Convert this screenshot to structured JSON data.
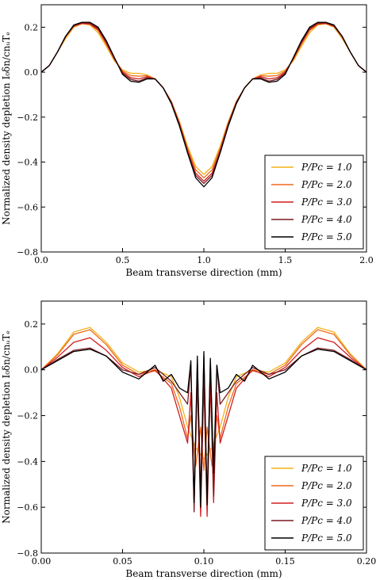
{
  "chart_data": [
    {
      "type": "line",
      "xlabel": "Beam transverse direction (mm)",
      "ylabel": "Normalized density depletion I₀δn/cnᵤTₑ",
      "xlim": [
        0.0,
        2.0
      ],
      "ylim": [
        -0.8,
        0.3
      ],
      "xticks": [
        "0.0",
        "0.5",
        "1.0",
        "1.5",
        "2.0"
      ],
      "yticks": [
        "0.2",
        "0.0",
        "−0.2",
        "−0.4",
        "−0.6",
        "−0.8"
      ],
      "legend_position": "lower-right",
      "series": [
        {
          "name": "P/Pc = 1.0",
          "color": "#f2b21a",
          "x": [
            0.0,
            0.05,
            0.1,
            0.15,
            0.2,
            0.25,
            0.3,
            0.35,
            0.4,
            0.45,
            0.5,
            0.55,
            0.6,
            0.65,
            0.7,
            0.75,
            0.8,
            0.85,
            0.9,
            0.95,
            1.0,
            1.05,
            1.1,
            1.15,
            1.2,
            1.25,
            1.3,
            1.35,
            1.4,
            1.45,
            1.5,
            1.55,
            1.6,
            1.65,
            1.7,
            1.75,
            1.8,
            1.85,
            1.9,
            1.95,
            2.0
          ],
          "values": [
            0.0,
            0.03,
            0.09,
            0.15,
            0.2,
            0.215,
            0.21,
            0.175,
            0.115,
            0.05,
            0.01,
            -0.005,
            -0.005,
            -0.012,
            -0.03,
            -0.07,
            -0.13,
            -0.22,
            -0.33,
            -0.42,
            -0.455,
            -0.42,
            -0.33,
            -0.22,
            -0.13,
            -0.07,
            -0.03,
            -0.012,
            -0.005,
            -0.005,
            0.01,
            0.05,
            0.115,
            0.175,
            0.21,
            0.215,
            0.2,
            0.15,
            0.09,
            0.03,
            0.0
          ]
        },
        {
          "name": "P/Pc = 2.0",
          "color": "#ee6a1e",
          "x": [
            0.0,
            0.05,
            0.1,
            0.15,
            0.2,
            0.25,
            0.3,
            0.35,
            0.4,
            0.45,
            0.5,
            0.55,
            0.6,
            0.65,
            0.7,
            0.75,
            0.8,
            0.85,
            0.9,
            0.95,
            1.0,
            1.05,
            1.1,
            1.15,
            1.2,
            1.25,
            1.3,
            1.35,
            1.4,
            1.45,
            1.5,
            1.55,
            1.6,
            1.65,
            1.7,
            1.75,
            1.8,
            1.85,
            1.9,
            1.95,
            2.0
          ],
          "values": [
            0.0,
            0.03,
            0.09,
            0.155,
            0.203,
            0.216,
            0.213,
            0.185,
            0.125,
            0.055,
            0.005,
            -0.015,
            -0.018,
            -0.015,
            -0.03,
            -0.07,
            -0.13,
            -0.225,
            -0.34,
            -0.435,
            -0.47,
            -0.435,
            -0.34,
            -0.225,
            -0.13,
            -0.07,
            -0.03,
            -0.015,
            -0.018,
            -0.015,
            0.005,
            0.055,
            0.125,
            0.185,
            0.213,
            0.216,
            0.203,
            0.155,
            0.09,
            0.03,
            0.0
          ]
        },
        {
          "name": "P/Pc = 3.0",
          "color": "#cf1f1f",
          "x": [
            0.0,
            0.05,
            0.1,
            0.15,
            0.2,
            0.25,
            0.3,
            0.35,
            0.4,
            0.45,
            0.5,
            0.55,
            0.6,
            0.65,
            0.7,
            0.75,
            0.8,
            0.85,
            0.9,
            0.95,
            1.0,
            1.05,
            1.1,
            1.15,
            1.2,
            1.25,
            1.3,
            1.35,
            1.4,
            1.45,
            1.5,
            1.55,
            1.6,
            1.65,
            1.7,
            1.75,
            1.8,
            1.85,
            1.9,
            1.95,
            2.0
          ],
          "values": [
            0.0,
            0.03,
            0.09,
            0.16,
            0.205,
            0.218,
            0.215,
            0.19,
            0.13,
            0.06,
            0.0,
            -0.025,
            -0.03,
            -0.02,
            -0.03,
            -0.07,
            -0.135,
            -0.23,
            -0.35,
            -0.45,
            -0.485,
            -0.45,
            -0.35,
            -0.23,
            -0.135,
            -0.07,
            -0.03,
            -0.02,
            -0.03,
            -0.025,
            0.0,
            0.06,
            0.13,
            0.19,
            0.215,
            0.218,
            0.205,
            0.16,
            0.09,
            0.03,
            0.0
          ]
        },
        {
          "name": "P/Pc = 4.0",
          "color": "#7a1a22",
          "x": [
            0.0,
            0.05,
            0.1,
            0.15,
            0.2,
            0.25,
            0.3,
            0.35,
            0.4,
            0.45,
            0.5,
            0.55,
            0.6,
            0.65,
            0.7,
            0.75,
            0.8,
            0.85,
            0.9,
            0.95,
            1.0,
            1.05,
            1.1,
            1.15,
            1.2,
            1.25,
            1.3,
            1.35,
            1.4,
            1.45,
            1.5,
            1.55,
            1.6,
            1.65,
            1.7,
            1.75,
            1.8,
            1.85,
            1.9,
            1.95,
            2.0
          ],
          "values": [
            0.0,
            0.03,
            0.09,
            0.16,
            0.207,
            0.22,
            0.218,
            0.195,
            0.135,
            0.062,
            -0.005,
            -0.032,
            -0.04,
            -0.025,
            -0.03,
            -0.07,
            -0.135,
            -0.235,
            -0.355,
            -0.46,
            -0.495,
            -0.46,
            -0.355,
            -0.235,
            -0.135,
            -0.07,
            -0.03,
            -0.025,
            -0.04,
            -0.032,
            -0.005,
            0.062,
            0.135,
            0.195,
            0.218,
            0.22,
            0.207,
            0.16,
            0.09,
            0.03,
            0.0
          ]
        },
        {
          "name": "P/Pc = 5.0",
          "color": "#000000",
          "x": [
            0.0,
            0.05,
            0.1,
            0.15,
            0.2,
            0.25,
            0.3,
            0.35,
            0.4,
            0.45,
            0.5,
            0.55,
            0.6,
            0.65,
            0.7,
            0.75,
            0.8,
            0.85,
            0.9,
            0.95,
            1.0,
            1.05,
            1.1,
            1.15,
            1.2,
            1.25,
            1.3,
            1.35,
            1.4,
            1.45,
            1.5,
            1.55,
            1.6,
            1.65,
            1.7,
            1.75,
            1.8,
            1.85,
            1.9,
            1.95,
            2.0
          ],
          "values": [
            0.0,
            0.03,
            0.09,
            0.16,
            0.21,
            0.222,
            0.222,
            0.2,
            0.14,
            0.065,
            -0.01,
            -0.04,
            -0.045,
            -0.03,
            -0.03,
            -0.07,
            -0.14,
            -0.24,
            -0.36,
            -0.47,
            -0.51,
            -0.47,
            -0.36,
            -0.24,
            -0.14,
            -0.07,
            -0.03,
            -0.03,
            -0.045,
            -0.04,
            -0.01,
            0.065,
            0.14,
            0.2,
            0.222,
            0.222,
            0.21,
            0.16,
            0.09,
            0.03,
            0.0
          ]
        }
      ]
    },
    {
      "type": "line",
      "xlabel": "Beam transverse direction (mm)",
      "ylabel": "Normalized density depletion I₀δn/cnᵤTₑ",
      "xlim": [
        0.0,
        0.2
      ],
      "ylim": [
        -0.8,
        0.3
      ],
      "xticks": [
        "0.00",
        "0.05",
        "0.10",
        "0.15",
        "0.20"
      ],
      "yticks": [
        "0.2",
        "0.0",
        "−0.2",
        "−0.4",
        "−0.6",
        "−0.8"
      ],
      "legend_position": "lower-right",
      "series": [
        {
          "name": "P/Pc = 1.0",
          "color": "#f2b21a",
          "x": [
            0.0,
            0.01,
            0.02,
            0.03,
            0.04,
            0.05,
            0.06,
            0.07,
            0.08,
            0.085,
            0.09,
            0.095,
            0.1,
            0.105,
            0.11,
            0.115,
            0.12,
            0.13,
            0.14,
            0.15,
            0.16,
            0.17,
            0.18,
            0.19,
            0.2
          ],
          "values": [
            0.0,
            0.07,
            0.165,
            0.185,
            0.12,
            0.03,
            -0.01,
            0.0,
            -0.03,
            -0.12,
            -0.25,
            -0.34,
            -0.39,
            -0.34,
            -0.25,
            -0.12,
            -0.03,
            0.0,
            -0.01,
            0.03,
            0.12,
            0.185,
            0.165,
            0.07,
            0.0
          ]
        },
        {
          "name": "P/Pc = 2.0",
          "color": "#ee6a1e",
          "x": [
            0.0,
            0.01,
            0.02,
            0.03,
            0.04,
            0.05,
            0.06,
            0.07,
            0.08,
            0.085,
            0.09,
            0.092,
            0.095,
            0.098,
            0.1,
            0.102,
            0.105,
            0.108,
            0.11,
            0.115,
            0.12,
            0.13,
            0.14,
            0.15,
            0.16,
            0.17,
            0.18,
            0.19,
            0.2
          ],
          "values": [
            0.0,
            0.065,
            0.155,
            0.175,
            0.11,
            0.02,
            -0.02,
            -0.005,
            -0.06,
            -0.16,
            -0.3,
            -0.2,
            -0.42,
            -0.25,
            -0.44,
            -0.25,
            -0.42,
            -0.2,
            -0.3,
            -0.16,
            -0.06,
            -0.005,
            -0.02,
            0.02,
            0.11,
            0.175,
            0.155,
            0.065,
            0.0
          ]
        },
        {
          "name": "P/Pc = 3.0",
          "color": "#cf1f1f",
          "x": [
            0.0,
            0.01,
            0.02,
            0.03,
            0.04,
            0.05,
            0.06,
            0.07,
            0.08,
            0.085,
            0.09,
            0.092,
            0.094,
            0.096,
            0.098,
            0.1,
            0.102,
            0.104,
            0.106,
            0.108,
            0.11,
            0.115,
            0.12,
            0.13,
            0.14,
            0.15,
            0.16,
            0.17,
            0.18,
            0.19,
            0.2
          ],
          "values": [
            0.0,
            0.055,
            0.12,
            0.14,
            0.085,
            0.01,
            -0.03,
            0.0,
            -0.08,
            -0.2,
            -0.32,
            -0.1,
            -0.58,
            -0.05,
            -0.64,
            -0.05,
            -0.64,
            -0.05,
            -0.58,
            -0.1,
            -0.32,
            -0.2,
            -0.08,
            0.0,
            -0.03,
            0.01,
            0.085,
            0.14,
            0.12,
            0.055,
            0.0
          ]
        },
        {
          "name": "P/Pc = 4.0",
          "color": "#7a1a22",
          "x": [
            0.0,
            0.01,
            0.02,
            0.03,
            0.04,
            0.05,
            0.06,
            0.07,
            0.08,
            0.085,
            0.09,
            0.092,
            0.094,
            0.096,
            0.098,
            0.1,
            0.102,
            0.104,
            0.106,
            0.108,
            0.11,
            0.115,
            0.12,
            0.13,
            0.14,
            0.15,
            0.16,
            0.17,
            0.18,
            0.19,
            0.2
          ],
          "values": [
            0.0,
            0.045,
            0.085,
            0.095,
            0.06,
            0.0,
            -0.02,
            0.01,
            -0.05,
            -0.1,
            -0.15,
            0.02,
            -0.62,
            0.04,
            -0.55,
            0.06,
            -0.58,
            0.04,
            -0.55,
            0.02,
            -0.15,
            -0.1,
            -0.05,
            0.01,
            -0.02,
            0.0,
            0.06,
            0.095,
            0.085,
            0.045,
            0.0
          ]
        },
        {
          "name": "P/Pc = 5.0",
          "color": "#000000",
          "x": [
            0.0,
            0.01,
            0.02,
            0.03,
            0.04,
            0.05,
            0.06,
            0.07,
            0.075,
            0.08,
            0.085,
            0.09,
            0.092,
            0.094,
            0.096,
            0.098,
            0.1,
            0.102,
            0.104,
            0.106,
            0.108,
            0.11,
            0.115,
            0.12,
            0.125,
            0.13,
            0.14,
            0.15,
            0.16,
            0.17,
            0.18,
            0.19,
            0.2
          ],
          "values": [
            0.0,
            0.04,
            0.08,
            0.09,
            0.06,
            -0.01,
            -0.04,
            0.02,
            -0.05,
            -0.02,
            -0.08,
            -0.1,
            0.04,
            -0.58,
            0.06,
            -0.6,
            0.08,
            -0.59,
            0.05,
            -0.45,
            0.02,
            -0.1,
            -0.08,
            -0.02,
            -0.05,
            0.02,
            -0.04,
            -0.01,
            0.06,
            0.09,
            0.08,
            0.04,
            0.0
          ]
        }
      ]
    }
  ]
}
